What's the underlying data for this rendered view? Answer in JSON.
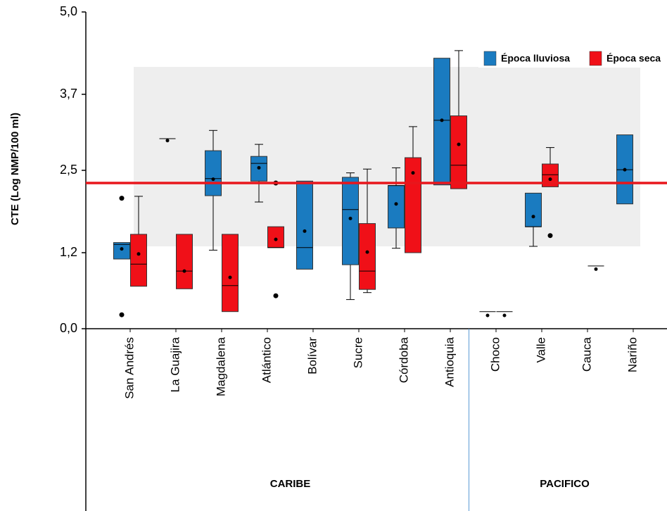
{
  "chart_data": {
    "type": "box",
    "y_label": "CTE (Log NMP/100 ml)",
    "categories": [
      "San Andrés",
      "La Guajira",
      "Magdalena",
      "Atlántico",
      "Bolívar",
      "Sucre",
      "Córdoba",
      "Antioquia",
      "Choco",
      "Valle",
      "Cauca",
      "Nariño"
    ],
    "groups": [
      {
        "label": "CARIBE",
        "count": 8
      },
      {
        "label": "PACIFICO",
        "count": 4
      }
    ],
    "ylim": [
      0,
      5
    ],
    "yticks": [
      {
        "value": 0,
        "label": "0,0"
      },
      {
        "value": 1.2,
        "label": "1,2"
      },
      {
        "value": 2.5,
        "label": "2,5"
      },
      {
        "value": 3.7,
        "label": "3,7"
      },
      {
        "value": 5,
        "label": "5,0"
      }
    ],
    "reference_line": {
      "value": 2.3,
      "color": "#e8161c"
    },
    "series": [
      {
        "name": "Época lluviosa",
        "color": "#1a7bc0",
        "boxes": [
          {
            "min": 1.1,
            "q1": 1.1,
            "median": 1.33,
            "q3": 1.36,
            "max": 1.36,
            "mean": 1.26,
            "outliers": [
              2.06,
              0.22
            ]
          },
          {
            "min": 3.0,
            "q1": 3.0,
            "median": 3.0,
            "q3": 3.0,
            "max": 3.0,
            "mean": 2.97,
            "outliers": []
          },
          {
            "min": 1.24,
            "q1": 2.1,
            "median": 2.37,
            "q3": 2.81,
            "max": 3.13,
            "mean": 2.36,
            "outliers": []
          },
          {
            "min": 2.0,
            "q1": 2.33,
            "median": 2.61,
            "q3": 2.72,
            "max": 2.91,
            "mean": 2.54,
            "outliers": []
          },
          {
            "min": 0.94,
            "q1": 0.94,
            "median": 1.28,
            "q3": 2.33,
            "max": 2.33,
            "mean": 1.54,
            "outliers": []
          },
          {
            "min": 0.46,
            "q1": 1.01,
            "median": 1.88,
            "q3": 2.39,
            "max": 2.46,
            "mean": 1.74,
            "outliers": []
          },
          {
            "min": 1.27,
            "q1": 1.59,
            "median": 2.26,
            "q3": 2.26,
            "max": 2.54,
            "mean": 1.97,
            "outliers": []
          },
          {
            "min": 2.27,
            "q1": 2.27,
            "median": 3.29,
            "q3": 4.27,
            "max": 4.27,
            "mean": 3.29,
            "outliers": []
          },
          {
            "min": 0.27,
            "q1": 0.27,
            "median": 0.27,
            "q3": 0.27,
            "max": 0.27,
            "mean": 0.21,
            "outliers": []
          },
          {
            "min": 1.3,
            "q1": 1.61,
            "median": 1.61,
            "q3": 2.14,
            "max": 2.14,
            "mean": 1.77,
            "outliers": []
          },
          null,
          {
            "min": 1.97,
            "q1": 1.97,
            "median": 2.51,
            "q3": 3.06,
            "max": 3.06,
            "mean": 2.51,
            "outliers": []
          }
        ]
      },
      {
        "name": "Época seca",
        "color": "#f01018",
        "boxes": [
          {
            "min": 0.67,
            "q1": 0.67,
            "median": 1.02,
            "q3": 1.49,
            "max": 2.09,
            "mean": 1.18,
            "outliers": []
          },
          {
            "min": 0.63,
            "q1": 0.63,
            "median": 0.91,
            "q3": 1.49,
            "max": 1.49,
            "mean": 0.91,
            "outliers": []
          },
          {
            "min": 0.27,
            "q1": 0.27,
            "median": 0.68,
            "q3": 1.49,
            "max": 1.49,
            "mean": 0.81,
            "outliers": []
          },
          {
            "min": 1.28,
            "q1": 1.28,
            "median": 1.28,
            "q3": 1.61,
            "max": 1.61,
            "mean": 1.41,
            "outliers": [
              2.3,
              0.52
            ]
          },
          null,
          {
            "min": 0.57,
            "q1": 0.62,
            "median": 0.91,
            "q3": 1.66,
            "max": 2.52,
            "mean": 1.21,
            "outliers": []
          },
          {
            "min": 1.2,
            "q1": 1.2,
            "median": 2.31,
            "q3": 2.7,
            "max": 3.19,
            "mean": 2.46,
            "outliers": []
          },
          {
            "min": 2.21,
            "q1": 2.21,
            "median": 2.58,
            "q3": 3.36,
            "max": 4.39,
            "mean": 2.91,
            "outliers": []
          },
          {
            "min": 0.27,
            "q1": 0.27,
            "median": 0.27,
            "q3": 0.27,
            "max": 0.27,
            "mean": 0.21,
            "outliers": []
          },
          {
            "min": 2.24,
            "q1": 2.24,
            "median": 2.43,
            "q3": 2.6,
            "max": 2.86,
            "mean": 2.36,
            "outliers": [
              1.47
            ]
          },
          {
            "min": 0.99,
            "q1": 0.99,
            "median": 0.99,
            "q3": 0.99,
            "max": 0.99,
            "mean": 0.94,
            "outliers": []
          },
          null
        ]
      }
    ]
  }
}
